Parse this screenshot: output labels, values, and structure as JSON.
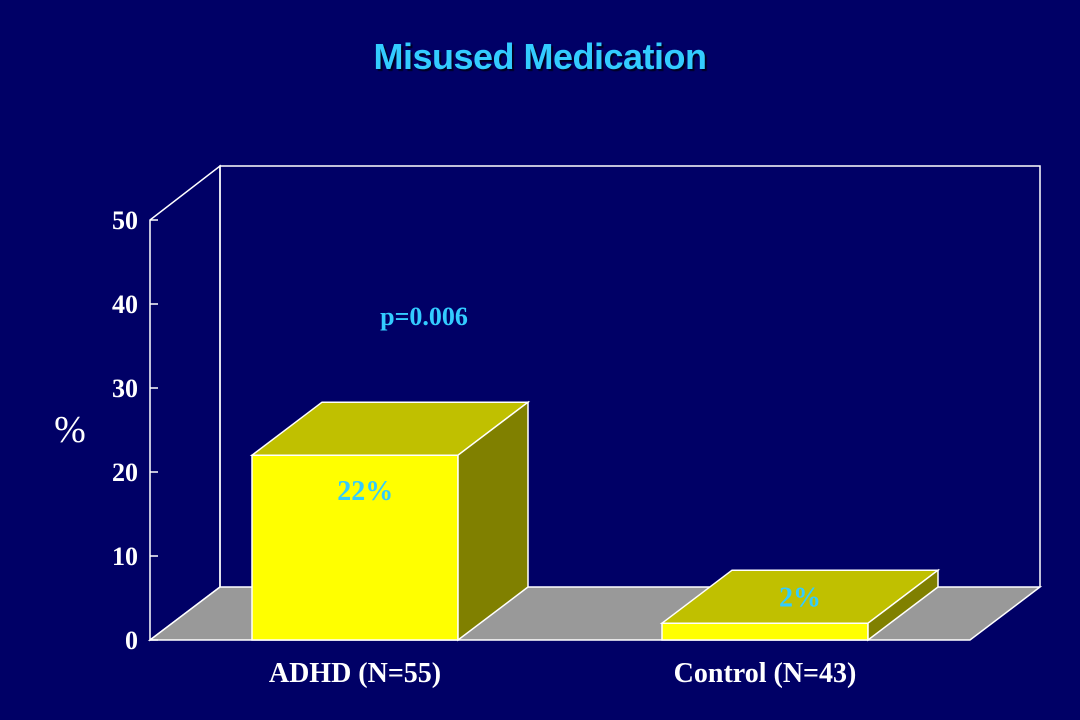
{
  "chart_data": {
    "type": "bar",
    "title": "Misused Medication",
    "ylabel": "%",
    "xlabel": "",
    "categories": [
      "ADHD (N=55)",
      "Control (N=43)"
    ],
    "values": [
      22,
      2
    ],
    "data_labels": [
      "22%",
      "2%"
    ],
    "ylim": [
      0,
      50
    ],
    "yticks": [
      "0",
      "10",
      "20",
      "30",
      "40",
      "50"
    ],
    "annotation": "p=0.006",
    "style": "3d",
    "grid": false,
    "colors": {
      "background": "#000066",
      "bar_front": "#ffff00",
      "bar_top": "#c0c000",
      "bar_side": "#808000",
      "floor": "#999999",
      "title": "#33ccff",
      "labels": "#33ccff"
    }
  }
}
